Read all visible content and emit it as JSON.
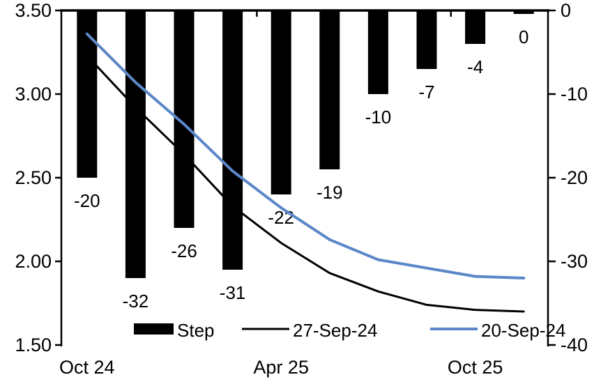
{
  "chart_data": {
    "type": "combo_bar_line",
    "title": "",
    "grid": "off",
    "num_categories": 10,
    "x_tick_labels": [
      "Oct 24",
      "Apr 25",
      "Oct 25"
    ],
    "x_tick_category_indices": [
      0,
      4,
      8
    ],
    "left_axis": {
      "min": 1.5,
      "max": 3.5,
      "tick_labels": [
        "3.50",
        "3.00",
        "2.50",
        "2.00",
        "1.50"
      ]
    },
    "right_axis": {
      "min": -40,
      "max": 0,
      "tick_labels": [
        "0",
        "-10",
        "-20",
        "-30",
        "-40"
      ]
    },
    "bar_series": {
      "name": "Step",
      "axis": "right",
      "color": "#000000",
      "values": [
        -20,
        -32,
        -26,
        -31,
        -22,
        -19,
        -10,
        -7,
        -4,
        0
      ],
      "data_labels": [
        "-20",
        "-32",
        "-26",
        "-31",
        "-22",
        "-19",
        "-10",
        "-7",
        "-4",
        "0"
      ]
    },
    "line_series": [
      {
        "name": "27-Sep-24",
        "axis": "left",
        "color": "#000000",
        "stroke_width": 3,
        "values": [
          3.23,
          2.92,
          2.64,
          2.33,
          2.11,
          1.93,
          1.82,
          1.74,
          1.71,
          1.7
        ]
      },
      {
        "name": "20-Sep-24",
        "axis": "left",
        "color": "#5B87C8",
        "stroke_width": 4,
        "values": [
          3.36,
          3.07,
          2.82,
          2.54,
          2.32,
          2.13,
          2.01,
          1.96,
          1.91,
          1.9
        ]
      }
    ],
    "legend": {
      "position": "bottom",
      "entries": [
        {
          "label": "Step",
          "swatch": "bar",
          "color": "#000000"
        },
        {
          "label": "27-Sep-24",
          "swatch": "line",
          "color": "#000000"
        },
        {
          "label": "20-Sep-24",
          "swatch": "line",
          "color": "#5B87C8"
        }
      ]
    }
  }
}
